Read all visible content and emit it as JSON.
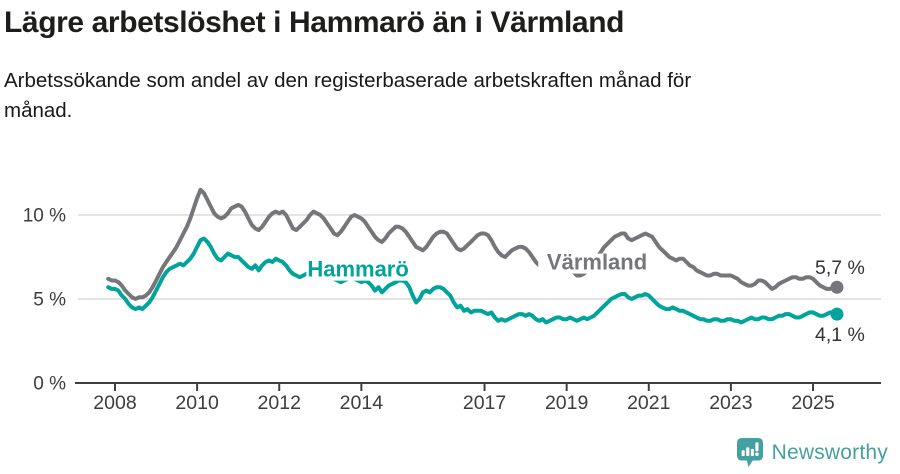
{
  "header": {
    "title": "Lägre arbetslöshet i Hammarö än i Värmland",
    "subtitle_lines": [
      "Arbetssökande som andel av den registerbaserade arbetskraften månad för",
      "månad."
    ]
  },
  "footer": {
    "brand": "Newsworthy",
    "brand_color": "#45a0a1"
  },
  "colors": {
    "hammaro": "#00a49b",
    "varmland": "#75767a",
    "grid": "#dcdcdc",
    "axis": "#3f3f3f",
    "tick_label": "#3d3d3d",
    "end_label": "#333333",
    "title": "#1d1d1b"
  },
  "chart_data": {
    "type": "line",
    "title": "Lägre arbetslöshet i Hammarö än i Värmland",
    "subtitle": "Arbetssökande som andel av den registerbaserade arbetskraften månad för månad.",
    "unit": "%",
    "x_start_year": 2007.8333,
    "x_step_years": 0.0833333,
    "x_ticks": [
      2008,
      2010,
      2012,
      2014,
      2017,
      2019,
      2021,
      2023,
      2025
    ],
    "y_ticks": [
      {
        "value": 0,
        "label": "0 %"
      },
      {
        "value": 5,
        "label": "5 %"
      },
      {
        "value": 10,
        "label": "10 %"
      }
    ],
    "ylim": [
      0,
      12.7
    ],
    "grid": true,
    "legend_position": "inline-labels",
    "series": [
      {
        "name": "Värmland",
        "color": "#75767a",
        "end_label": "5,7 %",
        "end_label_side": "above",
        "last_value": 5.7,
        "inline_label": {
          "text": "Värmland",
          "x_year": 2019.74,
          "value": 6.75
        },
        "values": [
          6.2,
          6.1,
          6.1,
          6.0,
          5.8,
          5.5,
          5.3,
          5.1,
          5.0,
          5.1,
          5.1,
          5.2,
          5.4,
          5.7,
          6.1,
          6.5,
          6.9,
          7.2,
          7.5,
          7.8,
          8.1,
          8.5,
          8.9,
          9.3,
          9.8,
          10.4,
          11.0,
          11.5,
          11.3,
          10.9,
          10.5,
          10.1,
          9.9,
          9.8,
          9.9,
          10.1,
          10.4,
          10.5,
          10.6,
          10.5,
          10.2,
          9.8,
          9.4,
          9.2,
          9.1,
          9.3,
          9.6,
          9.9,
          10.1,
          10.2,
          10.1,
          10.2,
          10.0,
          9.6,
          9.2,
          9.1,
          9.3,
          9.5,
          9.7,
          10.0,
          10.2,
          10.1,
          10.0,
          9.8,
          9.5,
          9.2,
          8.9,
          8.8,
          9.0,
          9.3,
          9.6,
          9.9,
          10.0,
          9.9,
          9.8,
          9.6,
          9.3,
          9.0,
          8.7,
          8.5,
          8.4,
          8.6,
          8.9,
          9.1,
          9.3,
          9.3,
          9.2,
          9.0,
          8.7,
          8.4,
          8.1,
          8.0,
          7.9,
          8.1,
          8.4,
          8.7,
          8.9,
          9.0,
          9.0,
          8.9,
          8.6,
          8.3,
          8.0,
          7.9,
          8.0,
          8.2,
          8.4,
          8.6,
          8.8,
          8.9,
          8.9,
          8.8,
          8.5,
          8.1,
          7.8,
          7.6,
          7.5,
          7.7,
          7.9,
          8.0,
          8.1,
          8.1,
          8.0,
          7.8,
          7.5,
          7.2,
          7.0,
          6.9,
          6.8,
          6.9,
          7.1,
          7.2,
          7.1,
          7.0,
          6.9,
          6.8,
          6.6,
          6.4,
          6.4,
          6.5,
          6.7,
          6.9,
          7.2,
          7.5,
          7.8,
          8.1,
          8.3,
          8.5,
          8.7,
          8.8,
          8.9,
          8.9,
          8.6,
          8.5,
          8.6,
          8.7,
          8.8,
          8.9,
          8.8,
          8.7,
          8.4,
          8.1,
          7.9,
          7.7,
          7.5,
          7.4,
          7.3,
          7.4,
          7.4,
          7.2,
          7.0,
          6.9,
          6.7,
          6.6,
          6.5,
          6.4,
          6.4,
          6.5,
          6.5,
          6.4,
          6.4,
          6.4,
          6.4,
          6.3,
          6.2,
          6.0,
          5.9,
          5.8,
          5.8,
          5.9,
          6.1,
          6.1,
          6.0,
          5.8,
          5.6,
          5.7,
          5.9,
          6.0,
          6.1,
          6.2,
          6.3,
          6.3,
          6.2,
          6.2,
          6.3,
          6.3,
          6.2,
          6.0,
          5.8,
          5.7,
          5.6,
          5.6,
          5.7,
          5.7
        ]
      },
      {
        "name": "Hammarö",
        "color": "#00a49b",
        "end_label": "4,1 %",
        "end_label_side": "below",
        "last_value": 4.1,
        "inline_label": {
          "text": "Hammarö",
          "x_year": 2013.92,
          "value": 6.33
        },
        "values": [
          5.7,
          5.6,
          5.6,
          5.5,
          5.2,
          5.0,
          4.7,
          4.5,
          4.4,
          4.5,
          4.4,
          4.6,
          4.8,
          5.1,
          5.5,
          5.9,
          6.3,
          6.6,
          6.8,
          6.9,
          7.0,
          7.1,
          7.0,
          7.2,
          7.4,
          7.7,
          8.1,
          8.5,
          8.6,
          8.4,
          8.1,
          7.7,
          7.4,
          7.3,
          7.5,
          7.7,
          7.6,
          7.5,
          7.5,
          7.3,
          7.1,
          6.9,
          6.8,
          7.0,
          6.7,
          7.0,
          7.2,
          7.3,
          7.2,
          7.4,
          7.3,
          7.2,
          7.0,
          6.7,
          6.5,
          6.4,
          6.3,
          6.4,
          6.5,
          6.6,
          6.5,
          6.4,
          6.4,
          6.5,
          6.5,
          6.4,
          6.2,
          6.1,
          6.0,
          6.1,
          6.2,
          6.3,
          6.2,
          6.1,
          6.0,
          6.1,
          6.0,
          5.8,
          5.5,
          5.7,
          5.4,
          5.6,
          5.8,
          5.9,
          6.0,
          6.1,
          6.1,
          6.0,
          5.7,
          5.2,
          4.8,
          5.0,
          5.4,
          5.5,
          5.4,
          5.6,
          5.7,
          5.7,
          5.6,
          5.4,
          5.2,
          4.8,
          4.5,
          4.6,
          4.3,
          4.4,
          4.2,
          4.3,
          4.3,
          4.3,
          4.2,
          4.1,
          4.2,
          3.9,
          3.7,
          3.8,
          3.7,
          3.8,
          3.9,
          4.0,
          4.1,
          4.1,
          4.0,
          4.1,
          4.0,
          3.8,
          3.7,
          3.8,
          3.6,
          3.7,
          3.8,
          3.9,
          3.9,
          3.8,
          3.8,
          3.9,
          3.8,
          3.7,
          3.8,
          3.9,
          3.8,
          3.9,
          4.0,
          4.2,
          4.4,
          4.6,
          4.8,
          5.0,
          5.1,
          5.2,
          5.3,
          5.3,
          5.1,
          5.0,
          5.1,
          5.2,
          5.2,
          5.3,
          5.2,
          5.0,
          4.8,
          4.6,
          4.5,
          4.4,
          4.4,
          4.5,
          4.4,
          4.3,
          4.3,
          4.2,
          4.1,
          4.0,
          3.9,
          3.8,
          3.8,
          3.7,
          3.7,
          3.8,
          3.8,
          3.7,
          3.7,
          3.8,
          3.8,
          3.7,
          3.7,
          3.6,
          3.7,
          3.8,
          3.9,
          3.8,
          3.8,
          3.9,
          3.9,
          3.8,
          3.8,
          3.9,
          4.0,
          4.0,
          4.1,
          4.1,
          4.0,
          3.9,
          3.9,
          4.0,
          4.1,
          4.2,
          4.2,
          4.1,
          4.0,
          4.0,
          4.1,
          4.2,
          4.2,
          4.1
        ]
      }
    ]
  }
}
